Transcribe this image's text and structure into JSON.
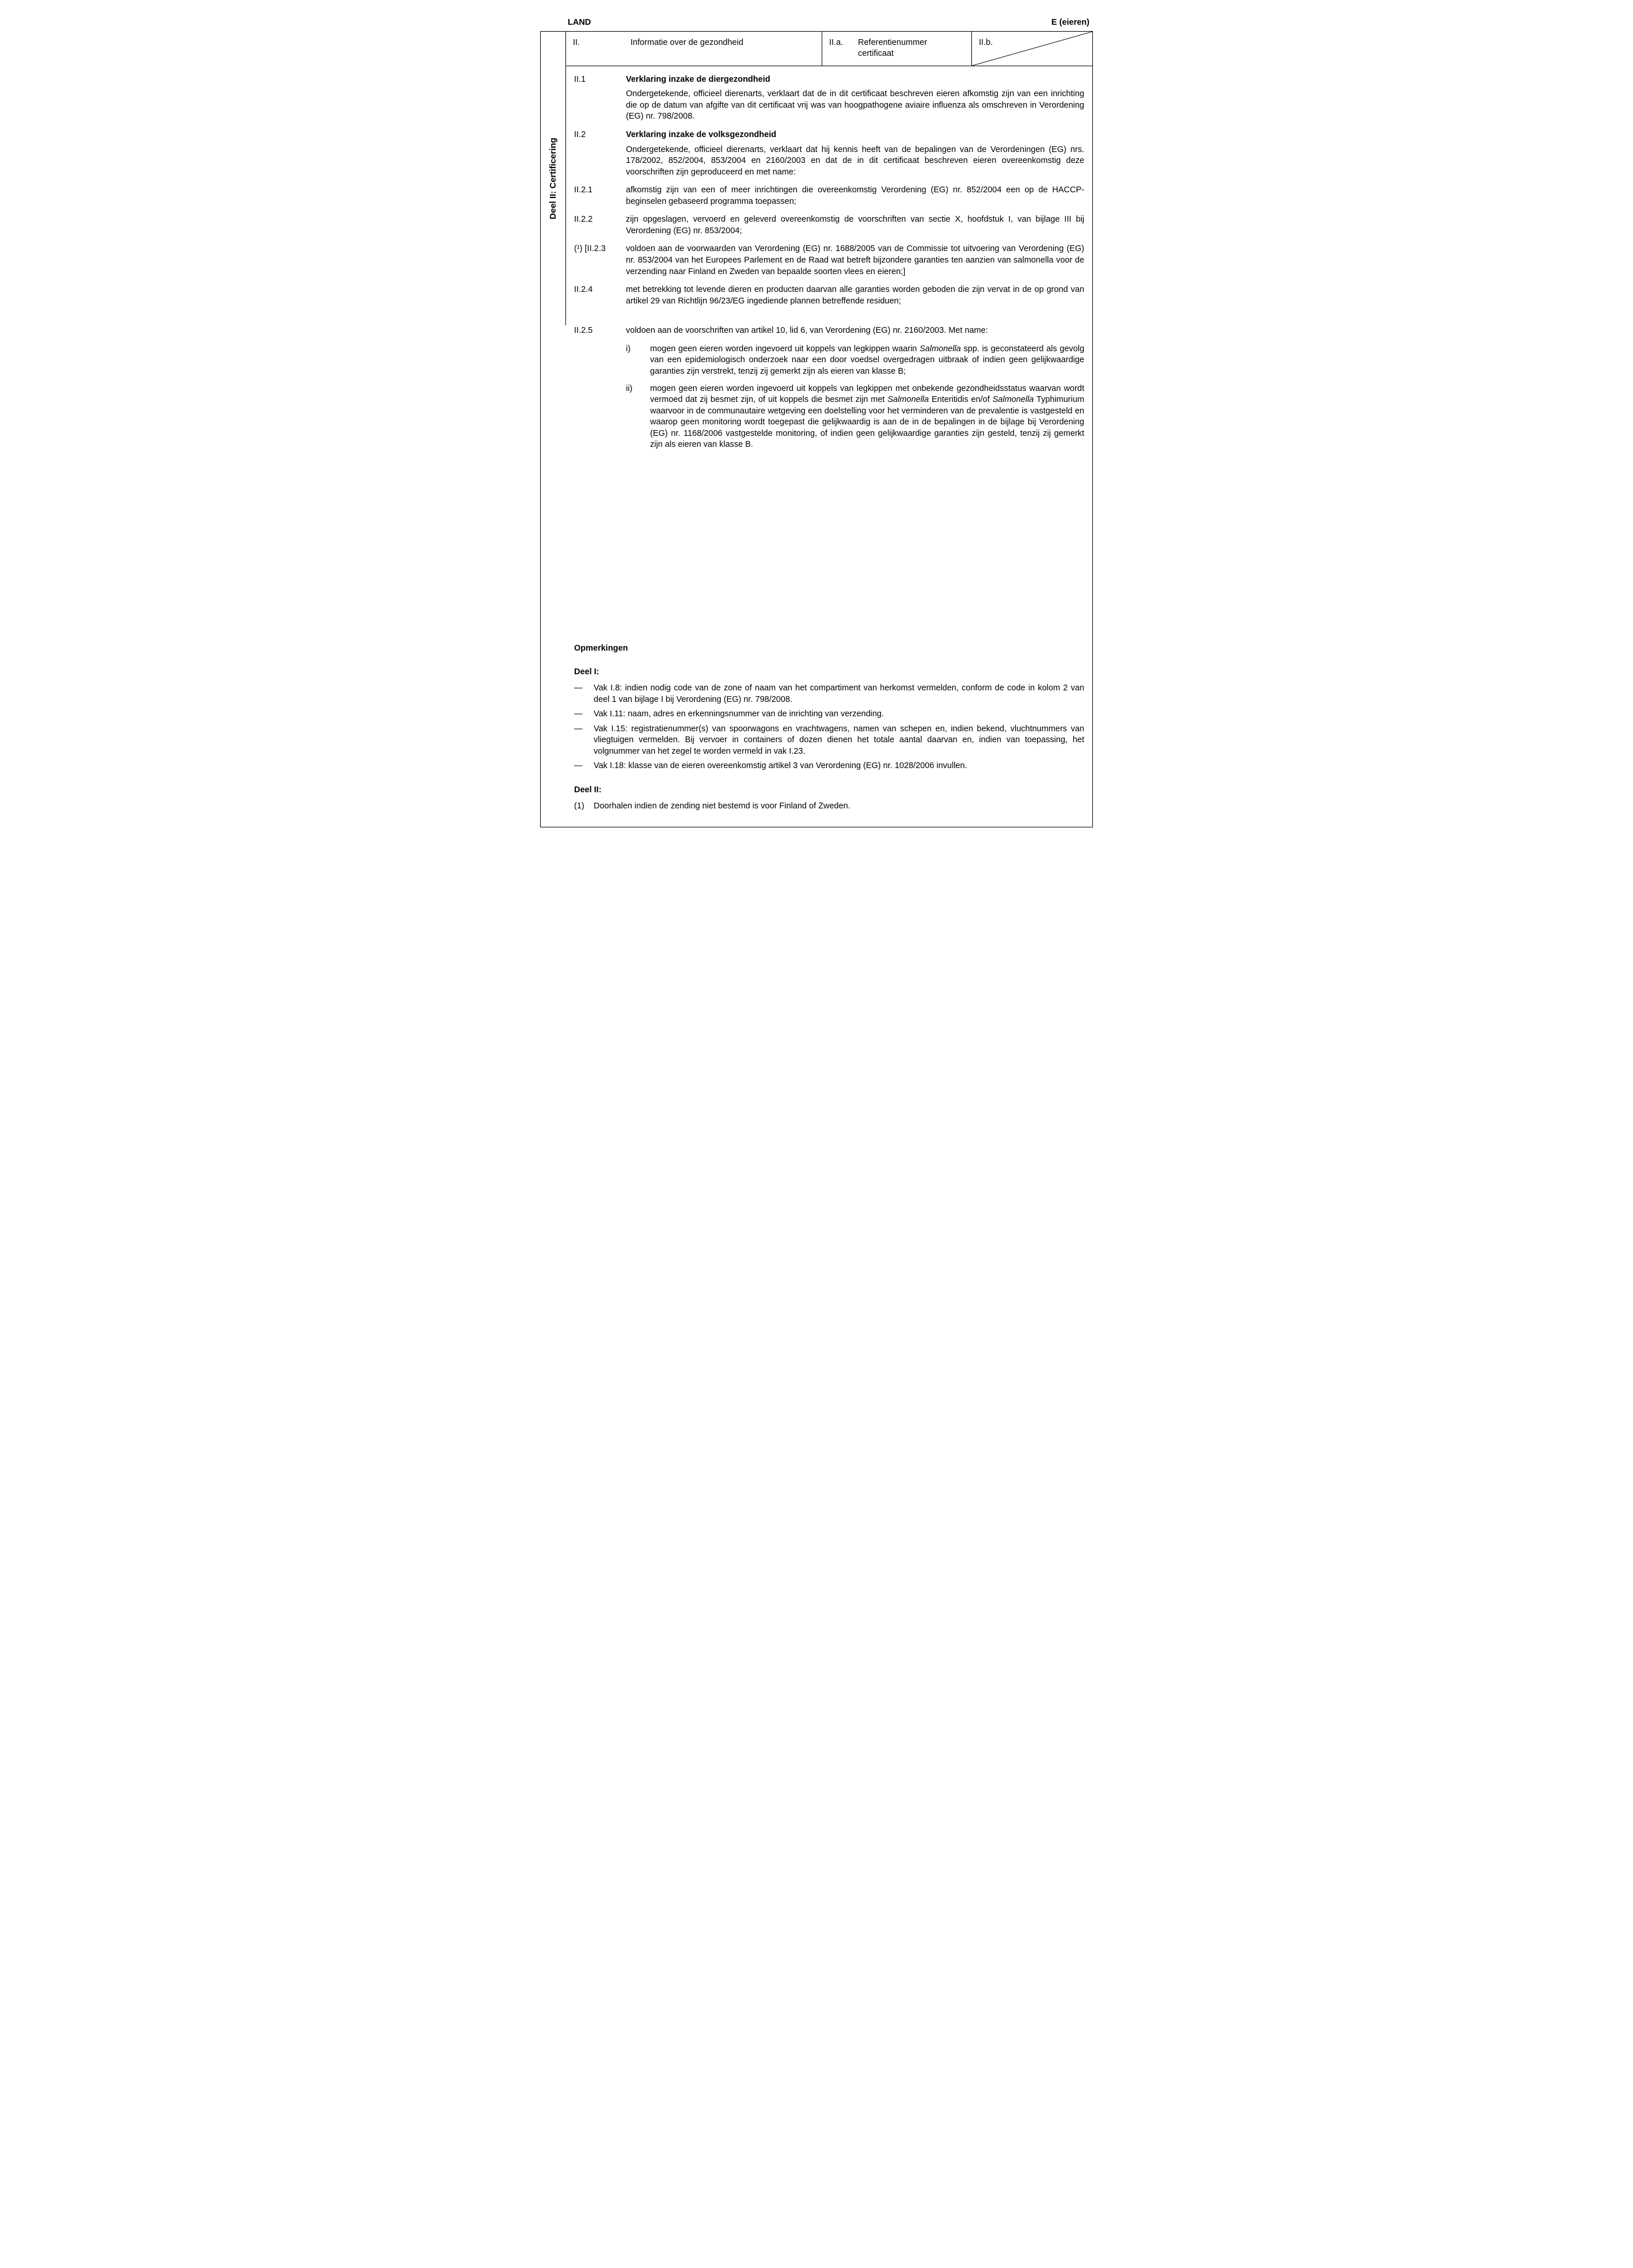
{
  "header": {
    "left": "LAND",
    "right": "E (eieren)"
  },
  "sidebar_label": "Deel II: Certificering",
  "row_header": {
    "col1_num": "II.",
    "col1_text": "Informatie over de gezondheid",
    "col2_num": "II.a.",
    "col2_text": "Referentienummer certificaat",
    "col3_num": "II.b."
  },
  "sections": [
    {
      "num": "II.1",
      "title": "Verklaring inzake de diergezondheid",
      "body": "Ondergetekende, officieel dierenarts, verklaart dat de in dit certificaat beschreven eieren afkomstig zijn van een inrichting die op de datum van afgifte van dit certificaat vrij was van hoogpathogene aviaire influenza als omschreven in Verordening (EG) nr. 798/2008."
    },
    {
      "num": "II.2",
      "title": "Verklaring inzake de volksgezondheid",
      "body": "Ondergetekende, officieel dierenarts, verklaart dat hij kennis heeft van de bepalingen van de Verordeningen (EG) nrs. 178/2002, 852/2004, 853/2004 en 2160/2003 en dat de in dit certificaat beschreven eieren overeenkomstig deze voorschriften zijn geproduceerd en met name:"
    },
    {
      "num": "II.2.1",
      "body": "afkomstig zijn van een of meer inrichtingen die overeenkomstig Verordening (EG) nr. 852/2004 een op de HACCP-beginselen gebaseerd programma toepassen;"
    },
    {
      "num": "II.2.2",
      "body": "zijn opgeslagen, vervoerd en geleverd overeenkomstig de voorschriften van sectie X, hoofdstuk I, van bijlage III bij Verordening (EG) nr. 853/2004;"
    },
    {
      "num": "(¹) [II.2.3",
      "body": "voldoen aan de voorwaarden van Verordening (EG) nr. 1688/2005 van de Commissie tot uitvoering van Verordening (EG) nr. 853/2004 van het Europees Parlement en de Raad wat betreft bijzondere garanties ten aanzien van salmonella voor de verzending naar Finland en Zweden van bepaalde soorten vlees en eieren;]"
    },
    {
      "num": "II.2.4",
      "body": "met betrekking tot levende dieren en producten daarvan alle garanties worden geboden die zijn vervat in de op grond van artikel 29 van Richtlijn 96/23/EG ingediende plannen betreffende residuen;"
    },
    {
      "num": "II.2.5",
      "body": "voldoen aan de voorschriften van artikel 10, lid 6, van Verordening (EG) nr. 2160/2003. Met name:"
    }
  ],
  "sub_ii25": [
    {
      "mark": "i)",
      "html": "mogen geen eieren worden ingevoerd uit koppels van legkippen waarin <em class='sp'>Salmonella</em> spp. is geconstateerd als gevolg van een epidemiologisch onderzoek naar een door voedsel overgedragen uitbraak of indien geen gelijkwaardige garanties zijn verstrekt, tenzij zij gemerkt zijn als eieren van klasse B;"
    },
    {
      "mark": "ii)",
      "html": "mogen geen eieren worden ingevoerd uit koppels van legkippen met onbekende gezondheidsstatus waarvan wordt vermoed dat zij besmet zijn, of uit koppels die besmet zijn met <em class='sp'>Salmonella</em> Enteritidis en/of <em class='sp'>Salmonella</em> Typhimurium waarvoor in de communautaire wetgeving een doelstelling voor het verminderen van de prevalentie is vastgesteld en waarop geen monitoring wordt toegepast die gelijkwaardig is aan de in de bepalingen in de bijlage bij Verordening (EG) nr. 1168/2006 vastgestelde monitoring, of indien geen gelijkwaardige garanties zijn gesteld, tenzij zij gemerkt zijn als eieren van klasse B."
    }
  ],
  "remarks": {
    "title": "Opmerkingen",
    "part1_title": "Deel I:",
    "part1_items": [
      "Vak I.8: indien nodig code van de zone of naam van het compartiment van herkomst vermelden, conform de code in kolom 2 van deel 1 van bijlage I bij Verordening (EG) nr. 798/2008.",
      "Vak I.11: naam, adres en erkenningsnummer van de inrichting van verzending.",
      "Vak I.15: registratienummer(s) van spoorwagons en vrachtwagens, namen van schepen en, indien bekend, vluchtnummers van vliegtuigen vermelden. Bij vervoer in containers of dozen dienen het totale aantal daarvan en, indien van toepassing, het volgnummer van het zegel te worden vermeld in vak I.23.",
      "Vak I.18: klasse van de eieren overeenkomstig artikel 3 van Verordening (EG) nr. 1028/2006 invullen."
    ],
    "part2_title": "Deel II:",
    "part2_num": "(1)",
    "part2_text": "Doorhalen indien de zending niet bestemd is voor Finland of Zweden."
  }
}
